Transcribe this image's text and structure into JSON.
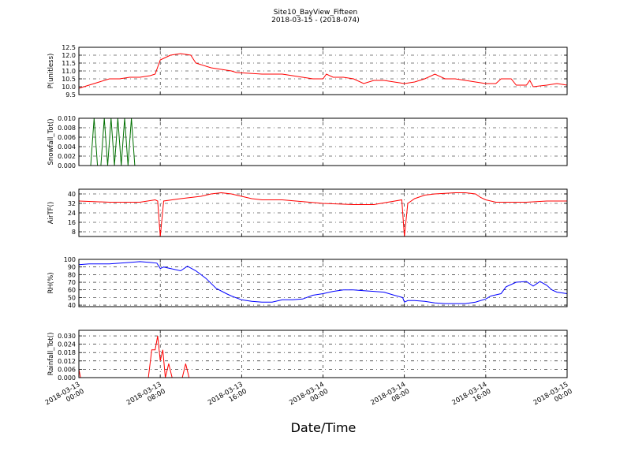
{
  "chart_data": {
    "title": "Site10_BayView_Fifteen",
    "subtitle": "2018-03-15 - (2018-074)",
    "xlabel": "Date/Time",
    "x_range": [
      "2018-03-13 00:00",
      "2018-03-15 00:00"
    ],
    "x_tick_labels": [
      [
        "2018-03-13",
        "00:00"
      ],
      [
        "2018-03-13",
        "08:00"
      ],
      [
        "2018-03-13",
        "16:00"
      ],
      [
        "2018-03-14",
        "00:00"
      ],
      [
        "2018-03-14",
        "08:00"
      ],
      [
        "2018-03-14",
        "16:00"
      ],
      [
        "2018-03-15",
        "00:00"
      ]
    ],
    "grid": true,
    "panels": [
      {
        "type": "line",
        "ylabel": "P(unitless)",
        "color": "#ff0000",
        "ylim": [
          9.5,
          12.5
        ],
        "yticks": [
          "9.5",
          "10.0",
          "10.5",
          "11.0",
          "11.5",
          "12.0",
          "12.5"
        ],
        "points": [
          [
            "2018-03-13 00:00",
            9.9
          ],
          [
            "2018-03-13 01:00",
            10.1
          ],
          [
            "2018-03-13 02:00",
            10.3
          ],
          [
            "2018-03-13 03:00",
            10.5
          ],
          [
            "2018-03-13 04:00",
            10.5
          ],
          [
            "2018-03-13 05:00",
            10.6
          ],
          [
            "2018-03-13 06:00",
            10.6
          ],
          [
            "2018-03-13 07:00",
            10.7
          ],
          [
            "2018-03-13 07:30",
            10.8
          ],
          [
            "2018-03-13 08:00",
            11.7
          ],
          [
            "2018-03-13 09:00",
            12.0
          ],
          [
            "2018-03-13 10:00",
            12.1
          ],
          [
            "2018-03-13 11:00",
            12.0
          ],
          [
            "2018-03-13 11:30",
            11.5
          ],
          [
            "2018-03-13 13:00",
            11.2
          ],
          [
            "2018-03-13 15:00",
            11.0
          ],
          [
            "2018-03-13 15:30",
            10.9
          ],
          [
            "2018-03-13 18:00",
            10.8
          ],
          [
            "2018-03-13 20:00",
            10.8
          ],
          [
            "2018-03-13 21:00",
            10.7
          ],
          [
            "2018-03-13 22:00",
            10.6
          ],
          [
            "2018-03-13 23:00",
            10.5
          ],
          [
            "2018-03-14 00:00",
            10.5
          ],
          [
            "2018-03-14 00:20",
            10.8
          ],
          [
            "2018-03-14 01:00",
            10.6
          ],
          [
            "2018-03-14 02:00",
            10.6
          ],
          [
            "2018-03-14 03:00",
            10.5
          ],
          [
            "2018-03-14 04:00",
            10.2
          ],
          [
            "2018-03-14 05:00",
            10.4
          ],
          [
            "2018-03-14 06:00",
            10.4
          ],
          [
            "2018-03-14 07:00",
            10.3
          ],
          [
            "2018-03-14 08:00",
            10.2
          ],
          [
            "2018-03-14 09:00",
            10.3
          ],
          [
            "2018-03-14 10:00",
            10.5
          ],
          [
            "2018-03-14 11:00",
            10.8
          ],
          [
            "2018-03-14 12:00",
            10.5
          ],
          [
            "2018-03-14 13:00",
            10.5
          ],
          [
            "2018-03-14 14:00",
            10.4
          ],
          [
            "2018-03-14 15:00",
            10.3
          ],
          [
            "2018-03-14 16:00",
            10.2
          ],
          [
            "2018-03-14 17:00",
            10.2
          ],
          [
            "2018-03-14 17:30",
            10.5
          ],
          [
            "2018-03-14 18:30",
            10.5
          ],
          [
            "2018-03-14 19:00",
            10.1
          ],
          [
            "2018-03-14 20:00",
            10.1
          ],
          [
            "2018-03-14 20:20",
            10.4
          ],
          [
            "2018-03-14 20:40",
            10.0
          ],
          [
            "2018-03-14 22:00",
            10.1
          ],
          [
            "2018-03-14 23:00",
            10.2
          ],
          [
            "2018-03-15 00:00",
            10.1
          ]
        ]
      },
      {
        "type": "line",
        "ylabel": "Snowfall_Tot()",
        "color": "#007000",
        "ylim": [
          0.0,
          0.01
        ],
        "yticks": [
          "0.000",
          "0.002",
          "0.004",
          "0.006",
          "0.008",
          "0.010"
        ],
        "points": [
          [
            "2018-03-13 00:00",
            0
          ],
          [
            "2018-03-13 01:10",
            0
          ],
          [
            "2018-03-13 01:30",
            0.01
          ],
          [
            "2018-03-13 01:50",
            0
          ],
          [
            "2018-03-13 02:10",
            0
          ],
          [
            "2018-03-13 02:30",
            0.01
          ],
          [
            "2018-03-13 02:50",
            0
          ],
          [
            "2018-03-13 03:10",
            0.01
          ],
          [
            "2018-03-13 03:30",
            0
          ],
          [
            "2018-03-13 03:50",
            0.01
          ],
          [
            "2018-03-13 04:10",
            0
          ],
          [
            "2018-03-13 04:30",
            0.01
          ],
          [
            "2018-03-13 04:50",
            0
          ],
          [
            "2018-03-13 05:10",
            0.01
          ],
          [
            "2018-03-13 05:30",
            0
          ],
          [
            "2018-03-15 00:00",
            0
          ]
        ]
      },
      {
        "type": "line",
        "ylabel": "AirTF()",
        "color": "#ff0000",
        "ylim": [
          4,
          44
        ],
        "yticks": [
          "8",
          "16",
          "24",
          "32",
          "40"
        ],
        "points": [
          [
            "2018-03-13 00:00",
            34
          ],
          [
            "2018-03-13 03:00",
            33
          ],
          [
            "2018-03-13 06:00",
            33
          ],
          [
            "2018-03-13 07:30",
            35
          ],
          [
            "2018-03-13 07:45",
            34
          ],
          [
            "2018-03-13 08:00",
            4
          ],
          [
            "2018-03-13 08:20",
            34
          ],
          [
            "2018-03-13 10:00",
            36
          ],
          [
            "2018-03-13 12:00",
            38
          ],
          [
            "2018-03-13 13:00",
            40
          ],
          [
            "2018-03-13 14:00",
            41
          ],
          [
            "2018-03-13 15:00",
            40
          ],
          [
            "2018-03-13 16:00",
            38
          ],
          [
            "2018-03-13 17:00",
            36
          ],
          [
            "2018-03-13 18:00",
            35
          ],
          [
            "2018-03-13 20:00",
            35
          ],
          [
            "2018-03-14 00:00",
            32
          ],
          [
            "2018-03-14 03:00",
            31
          ],
          [
            "2018-03-14 05:00",
            31
          ],
          [
            "2018-03-14 07:45",
            35
          ],
          [
            "2018-03-14 08:00",
            4
          ],
          [
            "2018-03-14 08:20",
            32
          ],
          [
            "2018-03-14 09:00",
            36
          ],
          [
            "2018-03-14 10:00",
            39
          ],
          [
            "2018-03-14 11:00",
            40
          ],
          [
            "2018-03-14 13:00",
            41
          ],
          [
            "2018-03-14 14:00",
            41
          ],
          [
            "2018-03-14 15:00",
            40
          ],
          [
            "2018-03-14 15:30",
            37
          ],
          [
            "2018-03-14 16:00",
            35
          ],
          [
            "2018-03-14 17:00",
            33
          ],
          [
            "2018-03-14 18:00",
            33
          ],
          [
            "2018-03-14 20:00",
            33
          ],
          [
            "2018-03-14 22:00",
            34
          ],
          [
            "2018-03-15 00:00",
            34
          ]
        ]
      },
      {
        "type": "line",
        "ylabel": "RH(%)",
        "color": "#0000ff",
        "ylim": [
          38,
          100
        ],
        "yticks": [
          "40",
          "50",
          "60",
          "70",
          "80",
          "90",
          "100"
        ],
        "points": [
          [
            "2018-03-13 00:00",
            93
          ],
          [
            "2018-03-13 01:00",
            94
          ],
          [
            "2018-03-13 03:00",
            94
          ],
          [
            "2018-03-13 05:00",
            96
          ],
          [
            "2018-03-13 06:00",
            97
          ],
          [
            "2018-03-13 07:00",
            96
          ],
          [
            "2018-03-13 07:40",
            95
          ],
          [
            "2018-03-13 08:00",
            88
          ],
          [
            "2018-03-13 08:20",
            90
          ],
          [
            "2018-03-13 09:00",
            88
          ],
          [
            "2018-03-13 10:00",
            85
          ],
          [
            "2018-03-13 10:40",
            91
          ],
          [
            "2018-03-13 11:30",
            85
          ],
          [
            "2018-03-13 12:30",
            75
          ],
          [
            "2018-03-13 13:30",
            62
          ],
          [
            "2018-03-13 14:30",
            55
          ],
          [
            "2018-03-13 15:00",
            52
          ],
          [
            "2018-03-13 16:00",
            47
          ],
          [
            "2018-03-13 17:00",
            45
          ],
          [
            "2018-03-13 18:00",
            44
          ],
          [
            "2018-03-13 19:00",
            44
          ],
          [
            "2018-03-13 20:00",
            47
          ],
          [
            "2018-03-13 21:00",
            47
          ],
          [
            "2018-03-13 22:00",
            48
          ],
          [
            "2018-03-13 23:00",
            53
          ],
          [
            "2018-03-14 00:00",
            55
          ],
          [
            "2018-03-14 01:00",
            58
          ],
          [
            "2018-03-14 02:00",
            60
          ],
          [
            "2018-03-14 03:00",
            60
          ],
          [
            "2018-03-14 04:00",
            59
          ],
          [
            "2018-03-14 05:00",
            58
          ],
          [
            "2018-03-14 06:00",
            57
          ],
          [
            "2018-03-14 07:00",
            53
          ],
          [
            "2018-03-14 07:50",
            50
          ],
          [
            "2018-03-14 08:00",
            44
          ],
          [
            "2018-03-14 08:20",
            46
          ],
          [
            "2018-03-14 09:00",
            46
          ],
          [
            "2018-03-14 10:00",
            45
          ],
          [
            "2018-03-14 11:00",
            43
          ],
          [
            "2018-03-14 12:00",
            42
          ],
          [
            "2018-03-14 13:00",
            42
          ],
          [
            "2018-03-14 14:00",
            42
          ],
          [
            "2018-03-14 15:00",
            44
          ],
          [
            "2018-03-14 16:00",
            48
          ],
          [
            "2018-03-14 16:30",
            52
          ],
          [
            "2018-03-14 17:30",
            55
          ],
          [
            "2018-03-14 18:00",
            64
          ],
          [
            "2018-03-14 19:00",
            70
          ],
          [
            "2018-03-14 20:00",
            71
          ],
          [
            "2018-03-14 20:40",
            65
          ],
          [
            "2018-03-14 21:20",
            71
          ],
          [
            "2018-03-14 22:00",
            66
          ],
          [
            "2018-03-14 22:30",
            60
          ],
          [
            "2018-03-14 23:00",
            57
          ],
          [
            "2018-03-15 00:00",
            55
          ]
        ]
      },
      {
        "type": "line",
        "ylabel": "Rainfall_Tot()",
        "color": "#ff0000",
        "ylim": [
          0.0,
          0.034
        ],
        "yticks": [
          "0.000",
          "0.006",
          "0.012",
          "0.018",
          "0.024",
          "0.030"
        ],
        "points": [
          [
            "2018-03-13 00:00",
            0.006
          ],
          [
            "2018-03-13 00:10",
            0
          ],
          [
            "2018-03-13 06:50",
            0
          ],
          [
            "2018-03-13 07:10",
            0.02
          ],
          [
            "2018-03-13 07:30",
            0.02
          ],
          [
            "2018-03-13 07:45",
            0.03
          ],
          [
            "2018-03-13 08:00",
            0.012
          ],
          [
            "2018-03-13 08:15",
            0.02
          ],
          [
            "2018-03-13 08:30",
            0
          ],
          [
            "2018-03-13 08:50",
            0.01
          ],
          [
            "2018-03-13 09:10",
            0
          ],
          [
            "2018-03-13 10:10",
            0
          ],
          [
            "2018-03-13 10:30",
            0.01
          ],
          [
            "2018-03-13 10:50",
            0
          ],
          [
            "2018-03-15 00:00",
            0
          ]
        ]
      }
    ]
  }
}
